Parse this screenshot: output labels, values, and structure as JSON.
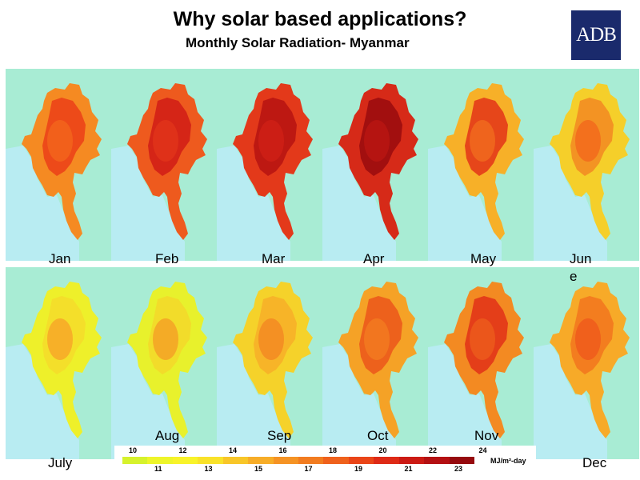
{
  "header": {
    "title": "Why solar based applications?",
    "subtitle": "Monthly Solar Radiation- Myanmar",
    "logo_text": "ADB"
  },
  "months": [
    {
      "label": "Jan",
      "base": "#ec4218",
      "mid": "#f2641c",
      "edge": "#f58a22"
    },
    {
      "label": "Feb",
      "base": "#d21f16",
      "mid": "#e0341a",
      "edge": "#ee5a1e"
    },
    {
      "label": "Mar",
      "base": "#b81512",
      "mid": "#cf2016",
      "edge": "#e3391a"
    },
    {
      "label": "Apr",
      "base": "#9c0c0e",
      "mid": "#b81512",
      "edge": "#d62a18"
    },
    {
      "label": "May",
      "base": "#e33b18",
      "mid": "#f06a1e",
      "edge": "#f7b028"
    },
    {
      "label": "Jun\ne",
      "base": "#f38c22",
      "mid": "#f26a1c",
      "edge": "#f5cf2a"
    },
    {
      "label": "July",
      "base": "#f4dd2a",
      "mid": "#f7a828",
      "edge": "#eef02a"
    },
    {
      "label": "Aug",
      "base": "#f3d92a",
      "mid": "#f5a226",
      "edge": "#e8f12c"
    },
    {
      "label": "Sep",
      "base": "#f7b028",
      "mid": "#f38a22",
      "edge": "#f5d22a"
    },
    {
      "label": "Oct",
      "base": "#ec5a1c",
      "mid": "#f27a20",
      "edge": "#f5a226"
    },
    {
      "label": "Nov",
      "base": "#e23518",
      "mid": "#ec5a1c",
      "edge": "#f38a22"
    },
    {
      "label": "Dec",
      "base": "#f2781e",
      "mid": "#ee5a1c",
      "edge": "#f7aa28"
    }
  ],
  "legend": {
    "unit": "MJ/m²-day",
    "top_labels": [
      "10",
      "12",
      "14",
      "16",
      "18",
      "20",
      "22",
      "24"
    ],
    "bottom_labels": [
      "11",
      "13",
      "15",
      "17",
      "19",
      "21",
      "23"
    ],
    "colors": [
      "#d6f22c",
      "#eef52a",
      "#f8f32a",
      "#f9e22a",
      "#f8c628",
      "#f7ad28",
      "#f59324",
      "#f27c20",
      "#ef611c",
      "#ea4518",
      "#de2a16",
      "#cc1a14",
      "#b41012",
      "#960a0e"
    ]
  },
  "colors": {
    "land_bg": "#a8ecd4",
    "sea_bg": "#b8ecf2"
  }
}
